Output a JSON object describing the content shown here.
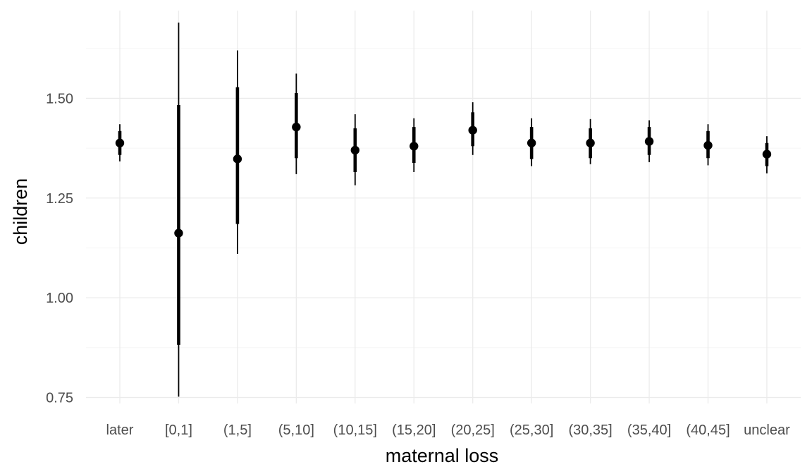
{
  "chart_data": {
    "type": "pointrange",
    "xlabel": "maternal loss",
    "ylabel": "children",
    "ylim": [
      0.735,
      1.72
    ],
    "y_ticks": [
      0.75,
      1.0,
      1.25,
      1.5
    ],
    "y_tick_labels": [
      "0.75",
      "1.00",
      "1.25",
      "1.50"
    ],
    "grid": true,
    "categories": [
      "later",
      "[0,1]",
      "(1,5]",
      "(5,10]",
      "(10,15]",
      "(15,20]",
      "(20,25]",
      "(25,30]",
      "(30,35]",
      "(35,40]",
      "(40,45]",
      "unclear"
    ],
    "estimate": [
      1.388,
      1.162,
      1.348,
      1.428,
      1.37,
      1.38,
      1.42,
      1.388,
      1.388,
      1.392,
      1.382,
      1.36
    ],
    "inner_low": [
      1.358,
      0.882,
      1.185,
      1.35,
      1.315,
      1.338,
      1.38,
      1.348,
      1.35,
      1.358,
      1.35,
      1.33
    ],
    "inner_high": [
      1.418,
      1.483,
      1.528,
      1.513,
      1.425,
      1.428,
      1.465,
      1.428,
      1.425,
      1.428,
      1.418,
      1.388
    ],
    "outer_low": [
      1.342,
      0.752,
      1.11,
      1.31,
      1.282,
      1.315,
      1.358,
      1.33,
      1.335,
      1.34,
      1.332,
      1.312
    ],
    "outer_high": [
      1.435,
      1.69,
      1.62,
      1.562,
      1.46,
      1.45,
      1.49,
      1.45,
      1.448,
      1.445,
      1.435,
      1.405
    ]
  }
}
